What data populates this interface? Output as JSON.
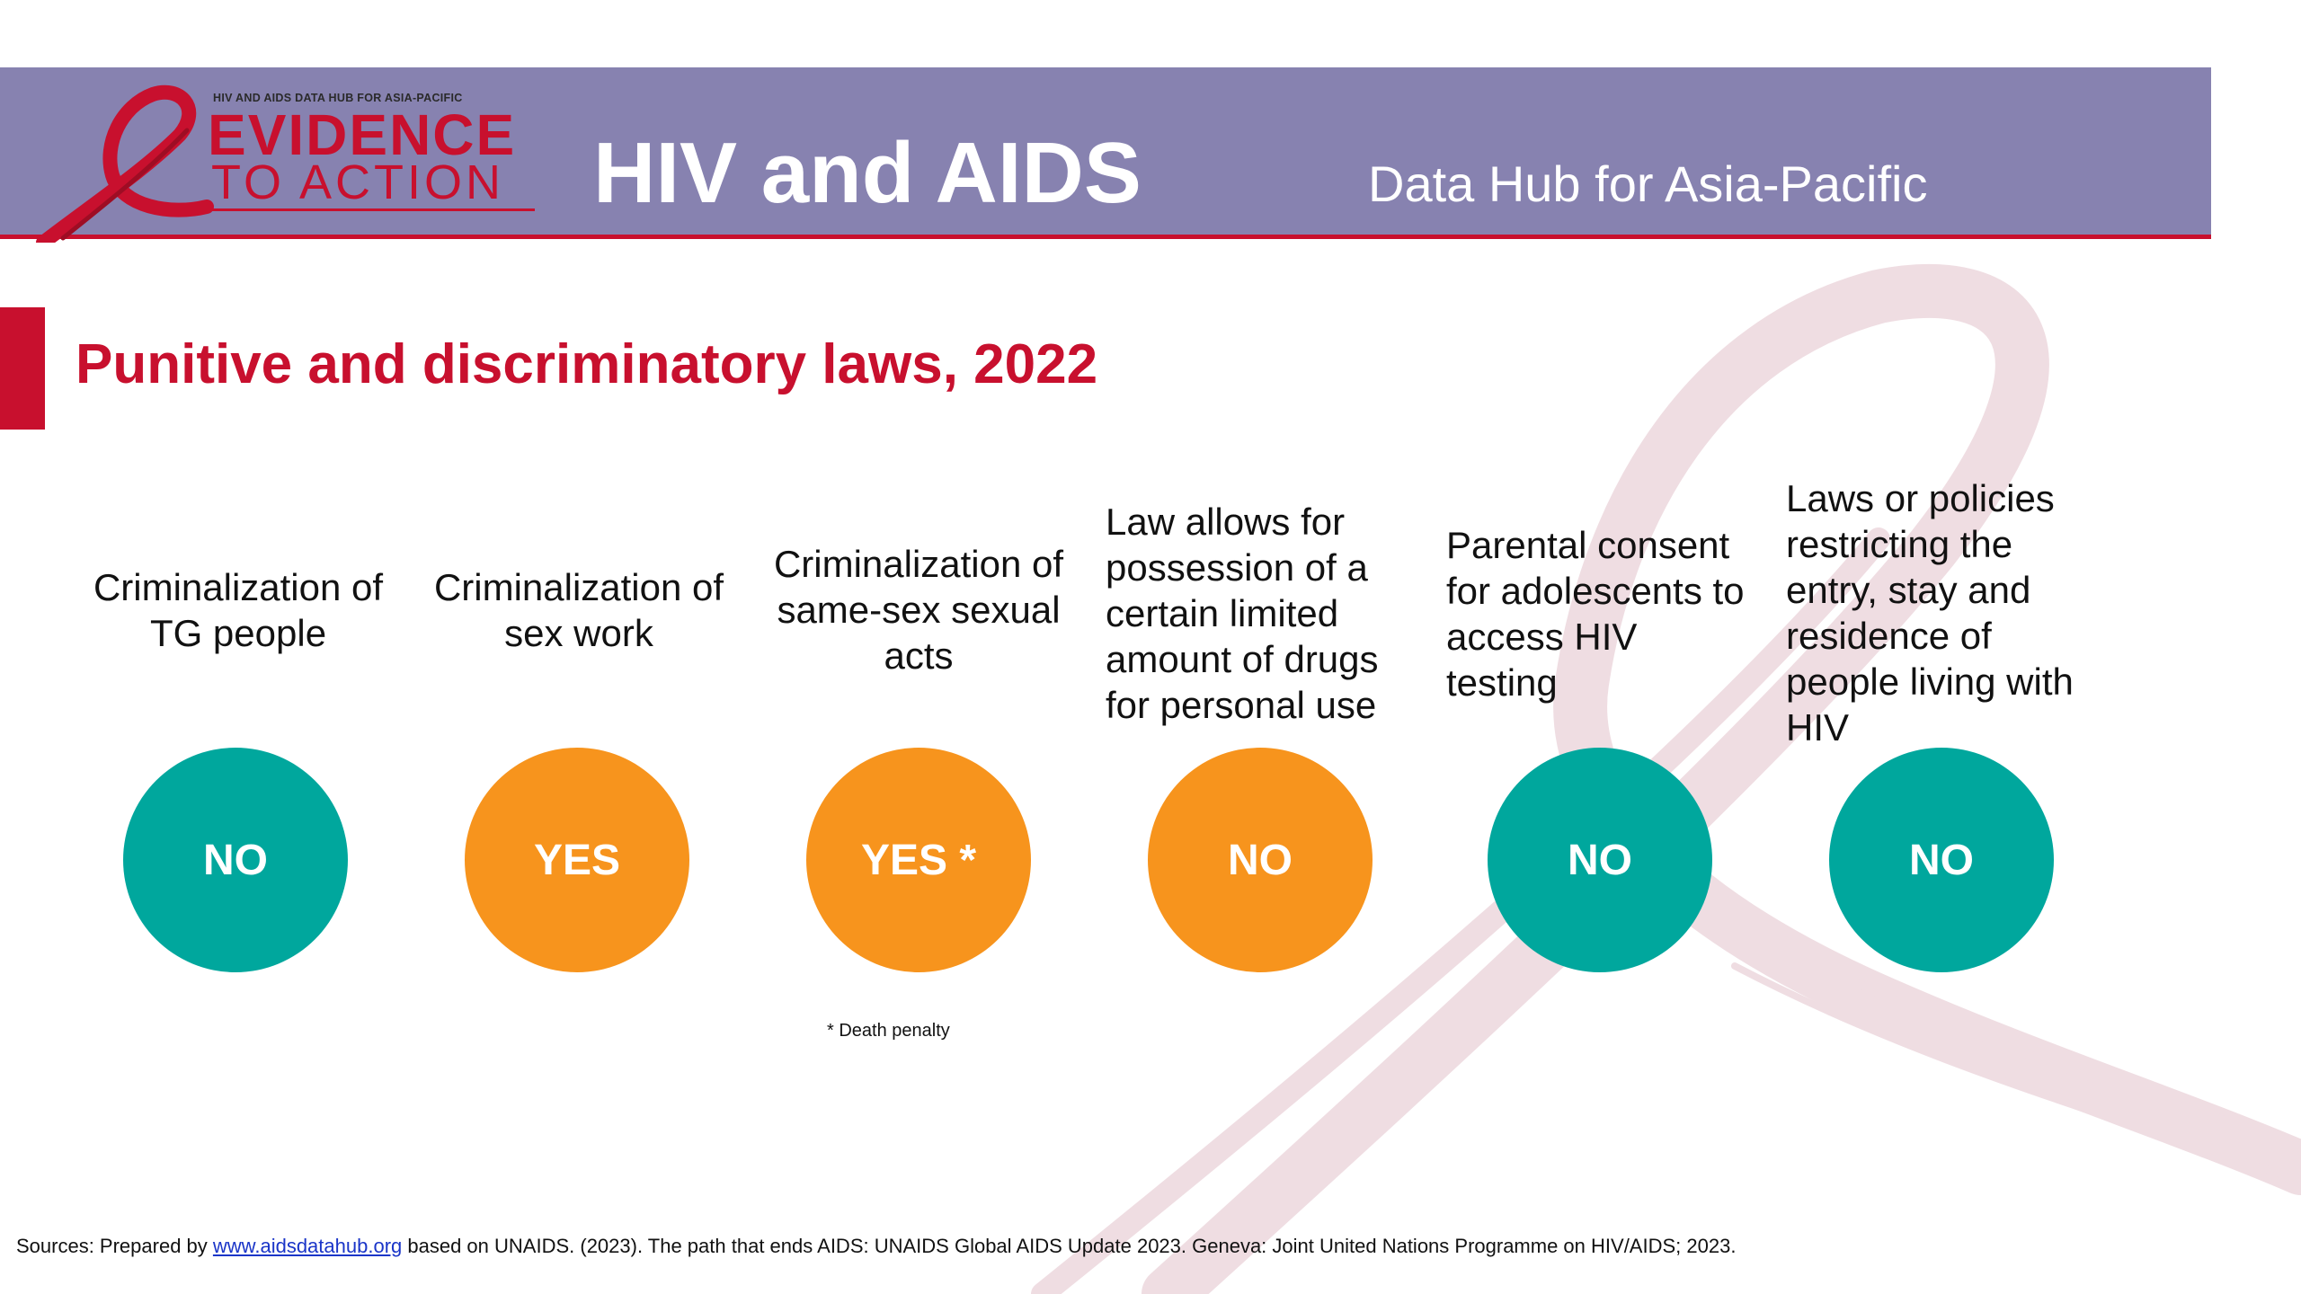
{
  "header": {
    "logo_small_text": "HIV AND AIDS DATA HUB FOR ASIA-PACIFIC",
    "logo_line1": "EVIDENCE",
    "logo_line2": "TO ACTION",
    "title": "HIV and AIDS",
    "subtitle": "Data Hub for Asia-Pacific"
  },
  "page_title": "Punitive and discriminatory laws, 2022",
  "indicators": [
    {
      "label": "Criminalization of  TG people",
      "value": "NO",
      "color": "#00a79d"
    },
    {
      "label": "Criminalization of sex work",
      "value": "YES",
      "color": "#f7941d"
    },
    {
      "label": "Criminalization of same-sex sexual acts",
      "value": "YES *",
      "color": "#f7941d"
    },
    {
      "label": "Law allows for possession of a certain limited amount of drugs for personal use",
      "value": "NO",
      "color": "#f7941d"
    },
    {
      "label": "Parental consent for adolescents to access HIV testing",
      "value": "NO",
      "color": "#00a79d"
    },
    {
      "label": "Laws or policies restricting the entry, stay and residence of people living with HIV",
      "value": "NO",
      "color": "#00a79d"
    }
  ],
  "footnote": "* Death penalty",
  "sources": {
    "prefix": "Sources: Prepared by ",
    "link_text": "www.aidsdatahub.org",
    "suffix": "  based on UNAIDS. (2023). The path that ends AIDS: UNAIDS Global AIDS Update 2023. Geneva: Joint United Nations Programme on HIV/AIDS; 2023."
  },
  "colors": {
    "header_band": "#8782b0",
    "accent": "#c8102e",
    "no": "#00a79d",
    "yes": "#f7941d"
  }
}
